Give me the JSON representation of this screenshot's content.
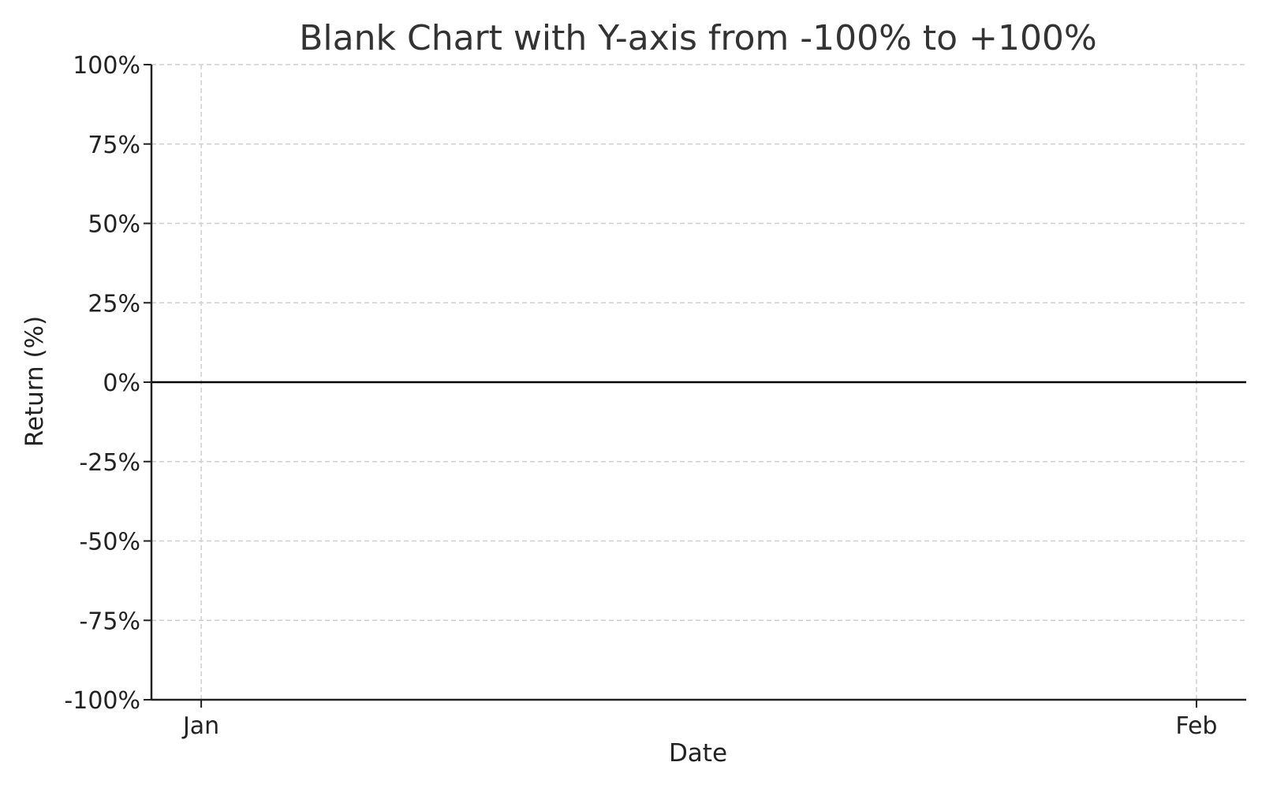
{
  "chart_data": {
    "type": "line",
    "title": "Blank Chart with Y-axis from -100% to +100%",
    "xlabel": "Date",
    "ylabel": "Return (%)",
    "x_ticks": [
      "Jan",
      "Feb"
    ],
    "x_tick_positions": [
      0,
      1
    ],
    "xlim": [
      -0.05,
      1.05
    ],
    "ylim": [
      -100,
      100
    ],
    "y_ticks": [
      100,
      75,
      50,
      25,
      0,
      -25,
      -50,
      -75,
      -100
    ],
    "y_tick_labels": [
      "100%",
      "75%",
      "50%",
      "25%",
      "0%",
      "-25%",
      "-50%",
      "-75%",
      "-100%"
    ],
    "reference_line": {
      "y": 0,
      "color": "#000000"
    },
    "series": [],
    "grid": true,
    "grid_style": "dashed",
    "legend": "none"
  }
}
